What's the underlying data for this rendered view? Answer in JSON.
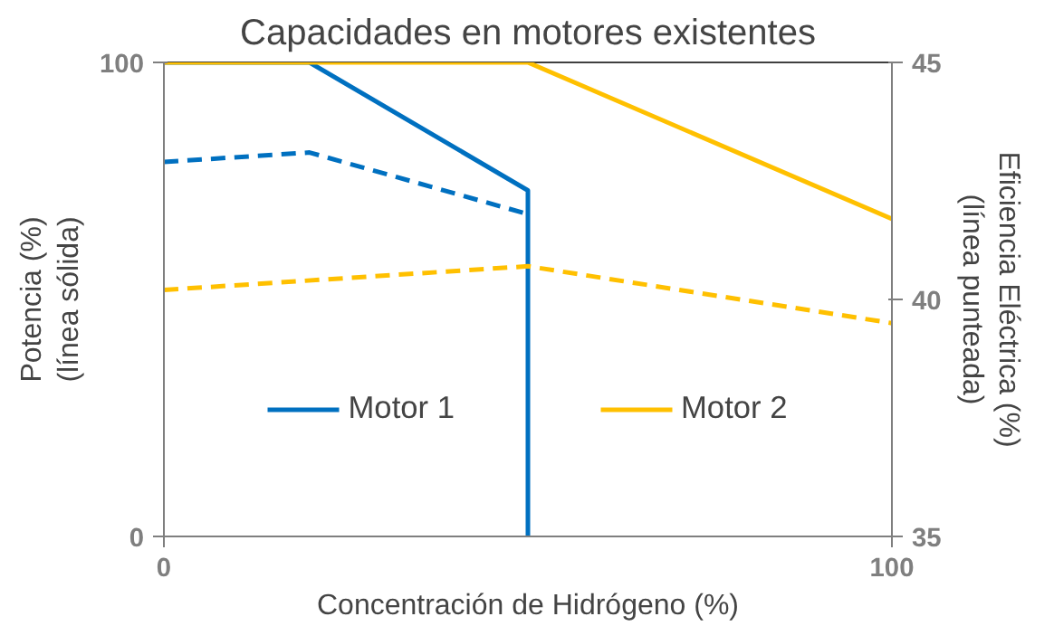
{
  "chart_data": {
    "type": "line",
    "title": "Capacidades en motores existentes",
    "xlabel": "Concentración de Hidrógeno (%)",
    "ylabel": "Potencia (%)\n(línea sólida)",
    "y2label": "Eficiencia Eléctrica (%)\n(línea punteada)",
    "xlim": [
      0,
      100
    ],
    "xticks": [
      0,
      100
    ],
    "ylim": [
      0,
      100
    ],
    "yticks": [
      0,
      100
    ],
    "y2lim": [
      35,
      45
    ],
    "y2ticks": [
      35,
      40,
      45
    ],
    "legend": "bottom",
    "marker": "none",
    "series": [
      {
        "name": "Motor 1",
        "color": "#0070c0",
        "x": [
          0,
          20,
          50,
          50
        ],
        "values": [
          100,
          100,
          73,
          0
        ],
        "line_style": "solid"
      },
      {
        "name": "Motor 2",
        "color": "#ffc000",
        "x": [
          0,
          50,
          100
        ],
        "values": [
          100,
          100,
          67
        ],
        "line_style": "solid"
      },
      {
        "color": "#0070c0",
        "x": [
          0,
          20,
          50
        ],
        "values": [
          42.9,
          43.1,
          41.8
        ],
        "line_style": "dashed",
        "axis": "y2"
      },
      {
        "color": "#ffc000",
        "x": [
          0,
          50,
          100
        ],
        "values": [
          40.2,
          40.7,
          39.5
        ],
        "line_style": "dashed",
        "axis": "y2"
      }
    ]
  }
}
